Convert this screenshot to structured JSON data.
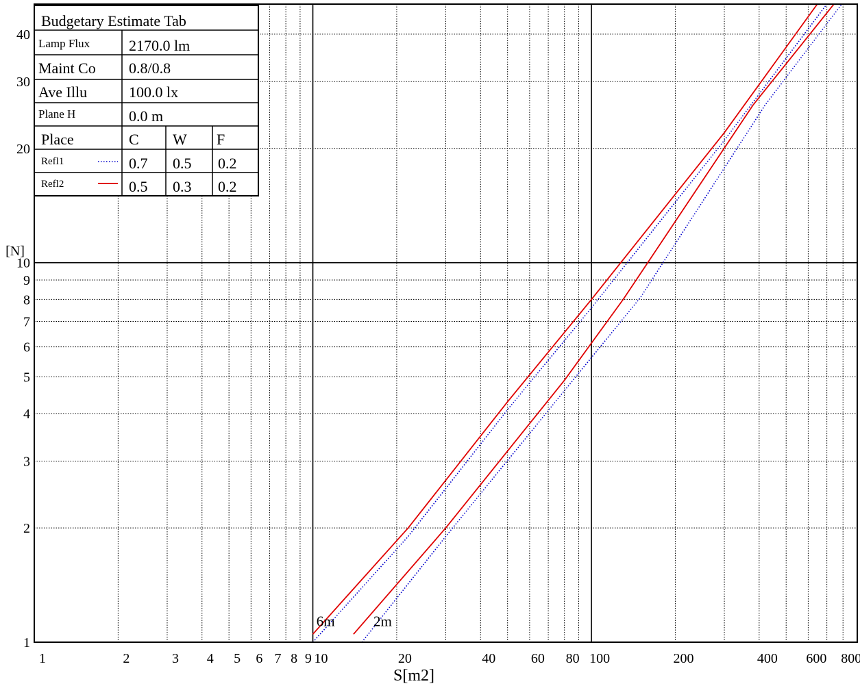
{
  "chart_data": {
    "type": "line",
    "title": "",
    "xlabel": "S[m2]",
    "ylabel": "[N]",
    "xscale": "log",
    "yscale": "log",
    "xlim": [
      1,
      900
    ],
    "ylim": [
      1,
      48
    ],
    "grid": true,
    "x_ticks": [
      1,
      2,
      3,
      4,
      5,
      6,
      7,
      8,
      9,
      10,
      20,
      40,
      60,
      80,
      100,
      200,
      400,
      600,
      800
    ],
    "x_tick_labels": [
      "1",
      "2",
      "3",
      "4",
      "5",
      "6",
      "7",
      "8",
      "9",
      "10",
      "20",
      "40",
      "60",
      "80",
      "100",
      "200",
      "400",
      "600",
      "800"
    ],
    "x_grid": [
      1,
      2,
      3,
      4,
      5,
      6,
      7,
      8,
      9,
      10,
      20,
      30,
      40,
      50,
      60,
      70,
      80,
      90,
      100,
      200,
      300,
      400,
      500,
      600,
      700,
      800,
      900
    ],
    "x_major": [
      10,
      100
    ],
    "y_ticks": [
      1,
      2,
      3,
      4,
      5,
      6,
      7,
      8,
      9,
      10,
      20,
      30,
      40
    ],
    "y_tick_labels": [
      "1",
      "2",
      "3",
      "4",
      "5",
      "6",
      "7",
      "8",
      "9",
      "10",
      "20",
      "30",
      "40"
    ],
    "y_grid": [
      2,
      3,
      4,
      5,
      6,
      7,
      8,
      9,
      10,
      20,
      30,
      40
    ],
    "y_major": [
      10
    ],
    "series": [
      {
        "group": "6m",
        "refl": "Refl2",
        "style": "solid",
        "color": "#e00000",
        "x": [
          10,
          22,
          50,
          100,
          300,
          700
        ],
        "y": [
          1.05,
          2.0,
          4.3,
          8.0,
          22.0,
          52.0
        ]
      },
      {
        "group": "6m",
        "refl": "Refl1",
        "style": "dotted",
        "color": "#0000cc",
        "x": [
          10,
          22,
          50,
          100,
          300,
          760
        ],
        "y": [
          1.0,
          1.9,
          4.1,
          7.6,
          21.0,
          52.0
        ]
      },
      {
        "group": "2m",
        "refl": "Refl2",
        "style": "solid",
        "color": "#e00000",
        "x": [
          14,
          30,
          80,
          130,
          380,
          810
        ],
        "y": [
          1.05,
          2.0,
          4.9,
          8.0,
          26.0,
          52.0
        ]
      },
      {
        "group": "2m",
        "refl": "Refl1",
        "style": "dotted",
        "color": "#0000cc",
        "x": [
          15,
          30,
          80,
          150,
          420,
          860
        ],
        "y": [
          1.0,
          1.9,
          4.6,
          8.1,
          26.0,
          52.0
        ]
      }
    ],
    "annotations": [
      {
        "text": "6m",
        "x": 10.3,
        "y": 1.05
      },
      {
        "text": "2m",
        "x": 16.5,
        "y": 1.05
      }
    ]
  },
  "table": {
    "title": "Budgetary Estimate Tab",
    "rows": [
      {
        "label": "Lamp Flux",
        "value": "2170.0 lm"
      },
      {
        "label": "Maint Co",
        "value": "0.8/0.8"
      },
      {
        "label": "Ave Illu",
        "value": "100.0 lx"
      },
      {
        "label": "Plane H",
        "value": "0.0 m"
      }
    ],
    "header": {
      "place": "Place",
      "c": "C",
      "w": "W",
      "f": "F"
    },
    "refl": [
      {
        "name": "Refl1",
        "style": "dotted",
        "color": "#0000cc",
        "c": "0.7",
        "w": "0.5",
        "f": "0.2"
      },
      {
        "name": "Refl2",
        "style": "solid",
        "color": "#e00000",
        "c": "0.5",
        "w": "0.3",
        "f": "0.2"
      }
    ]
  }
}
